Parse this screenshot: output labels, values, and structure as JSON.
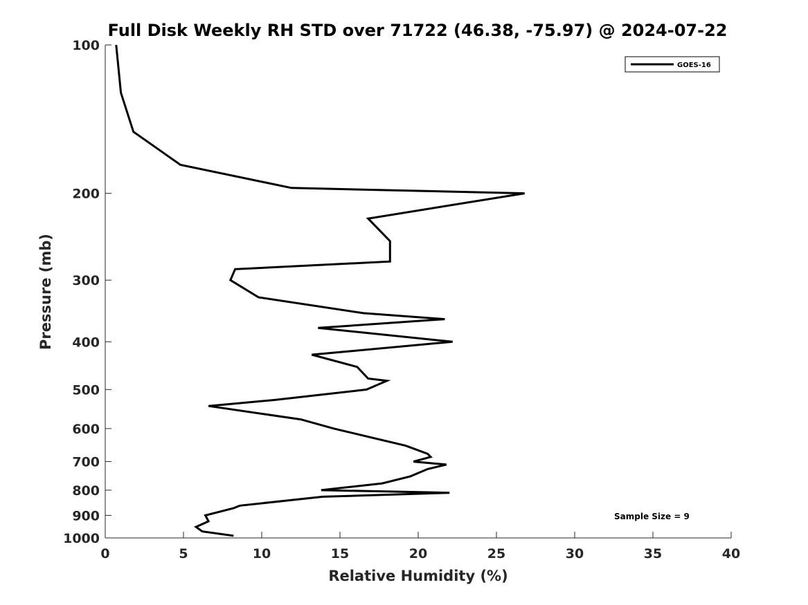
{
  "chart_data": {
    "type": "line",
    "title": "Full Disk Weekly RH STD over 71722 (46.38, -75.97) @ 2024-07-22",
    "xlabel": "Relative Humidity (%)",
    "ylabel": "Pressure (mb)",
    "xlim": [
      0,
      40
    ],
    "ylim": [
      100,
      1000
    ],
    "yscale": "log",
    "xticks": [
      0,
      5,
      10,
      15,
      20,
      25,
      30,
      35,
      40
    ],
    "xtick_labels": [
      "0",
      "5",
      "10",
      "15",
      "20",
      "25",
      "30",
      "35",
      "40"
    ],
    "yticks": [
      100,
      200,
      300,
      400,
      500,
      600,
      700,
      800,
      900,
      1000
    ],
    "ytick_labels": [
      "100",
      "200",
      "300",
      "400",
      "500",
      "600",
      "700",
      "800",
      "900",
      "1000"
    ],
    "legend": {
      "position": "top-right",
      "entries": [
        "GOES-16"
      ]
    },
    "annotation": "Sample Size = 9",
    "series": [
      {
        "name": "GOES-16",
        "color": "#000000",
        "points": [
          [
            0.7,
            100
          ],
          [
            1.0,
            125
          ],
          [
            1.8,
            150
          ],
          [
            4.8,
            175
          ],
          [
            11.9,
            195
          ],
          [
            26.8,
            200
          ],
          [
            16.8,
            225
          ],
          [
            18.2,
            250
          ],
          [
            18.2,
            275
          ],
          [
            8.3,
            285
          ],
          [
            8.0,
            300
          ],
          [
            9.8,
            325
          ],
          [
            16.5,
            350
          ],
          [
            21.7,
            360
          ],
          [
            13.6,
            375
          ],
          [
            22.2,
            400
          ],
          [
            13.2,
            425
          ],
          [
            16.1,
            450
          ],
          [
            16.8,
            475
          ],
          [
            18.0,
            480
          ],
          [
            16.7,
            500
          ],
          [
            10.8,
            525
          ],
          [
            6.6,
            540
          ],
          [
            12.5,
            575
          ],
          [
            14.6,
            600
          ],
          [
            14.6,
            600
          ],
          [
            19.2,
            650
          ],
          [
            20.6,
            675
          ],
          [
            20.8,
            685
          ],
          [
            19.7,
            700
          ],
          [
            21.8,
            710
          ],
          [
            20.6,
            725
          ],
          [
            19.5,
            750
          ],
          [
            17.7,
            775
          ],
          [
            13.8,
            800
          ],
          [
            22.0,
            810
          ],
          [
            13.9,
            825
          ],
          [
            8.6,
            860
          ],
          [
            8.2,
            870
          ],
          [
            6.4,
            900
          ],
          [
            6.6,
            925
          ],
          [
            5.8,
            950
          ],
          [
            6.2,
            970
          ],
          [
            8.2,
            990
          ]
        ]
      }
    ]
  }
}
